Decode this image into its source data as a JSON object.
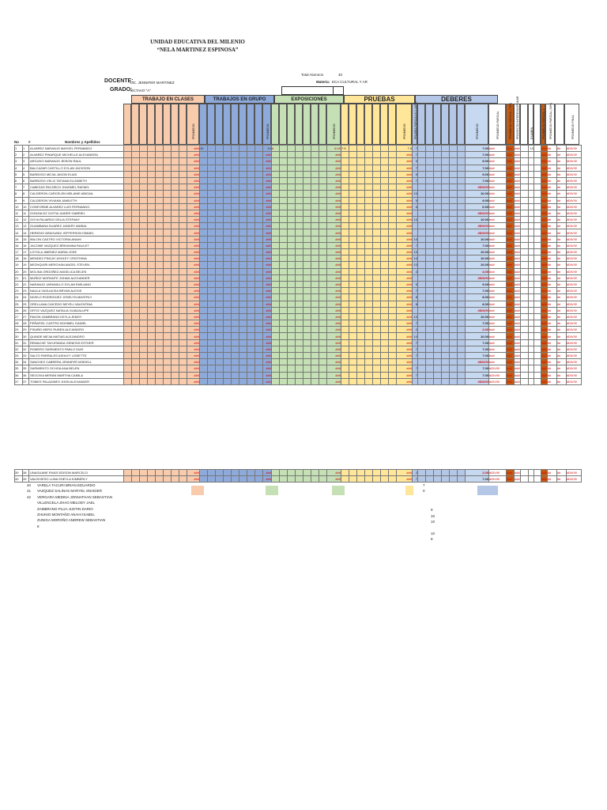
{
  "school": {
    "line1": "UNIDAD EDUCATIVA DEL MILENIO",
    "line2": "“NELA MARTINEZ ESPINOSA”"
  },
  "meta": {
    "total_label": "Total Alumnos",
    "total_value": "40",
    "docente_label": "DOCENTE:",
    "docente_value": "LIC. JENNIFER MARTINEZ",
    "materia_label": "Materia:",
    "materia_value": "ECA CULTURAL Y AR",
    "grado_label": "GRADO:",
    "grado_value": "OCTAVO \"A\""
  },
  "sections": [
    "TRABAJO EN CLASES",
    "TRABAJOS EN GRUPO",
    "EXPOSICIONES",
    "PRUEBAS",
    "DEBERES"
  ],
  "col_labels": {
    "no": "No",
    "num": "#",
    "names": "Nombres y Apellidos",
    "promedio": "PROMEDIO",
    "pruebas_sub": "PRUEBA PARCIAL B.1 (40%)",
    "parcial_1": "PROMEDIO PARCIAL",
    "parcial_2": "PROMEDIO PARCIAL (70%)",
    "proyecto": "PROYECTO INTERDISCIPLINAR",
    "examen": "EXAMEN",
    "parcial_3": "PROMEDIO PARCIAL 2",
    "parcial_4": "PROMEDIO PARCIAL (30%)",
    "final": "PROMEDIO FINAL"
  },
  "students": [
    {
      "no": "1",
      "num": "1",
      "name": "ALVAREZ NARANJO MAYKEL FERNANDO",
      "tg": "10",
      "tgp": "10",
      "ex": "6",
      "exp": "6.00",
      "pr": "7.5",
      "prp": "7.5",
      "de": "7",
      "dep": "7.00",
      "p1": "###",
      "p2": "10",
      "fin": "#DIV/0!"
    },
    {
      "no": "2",
      "num": "2",
      "name": "ALVAREZ PINARQUE MICHELLE ALEXANDRA",
      "de": "7",
      "dep": "7.00",
      "fin": "#DIV/0!"
    },
    {
      "no": "3",
      "num": "3",
      "name": "ARGUDO NARANJO JEISON RAUL",
      "de": "9",
      "dep": "9.00",
      "fin": "#DIV/0!"
    },
    {
      "no": "4",
      "num": "4",
      "name": "BALCAZAR CASTILLO DYLAN JACKSON",
      "de": "7",
      "dep": "7.00",
      "fin": "#DIV/0!"
    },
    {
      "no": "5",
      "num": "5",
      "name": "BARBOSO MEJIA JASON ELIAS",
      "de": "9",
      "dep": "9.00",
      "fin": "#DIV/0!"
    },
    {
      "no": "6",
      "num": "6",
      "name": "BARBOSO VELIZ TATIANA ELIZABETH",
      "de": "7",
      "dep": "7.00",
      "fin": "#DIV/0!"
    },
    {
      "no": "7",
      "num": "7",
      "name": "CABEZAS PACHECO JHASMEL RAFAEL",
      "dep": "#DIV/0!",
      "fin": "#DIV/0!"
    },
    {
      "no": "8",
      "num": "8",
      "name": "CALDERON CARCELEN MELANIE ABIGAIL",
      "de": "10",
      "dep": "10.00",
      "fin": "#DIV/0!"
    },
    {
      "no": "9",
      "num": "9",
      "name": "CALDERON VIVIANA JAMILETH",
      "de": "9",
      "dep": "9.00",
      "fin": "#DIV/0!"
    },
    {
      "no": "10",
      "num": "10",
      "name": "CONFORME ALVAREZ LUIS FERNANDO",
      "de": "6",
      "dep": "6.00",
      "fin": "#DIV/0!"
    },
    {
      "no": "11",
      "num": "11",
      "name": "GONZALEZ GOITIA JAIDER GABRIEL",
      "dep": "#DIV/0!",
      "fin": "#DIV/0!"
    },
    {
      "no": "12",
      "num": "12",
      "name": "GOYA RAJARDO DELIA STEFANY",
      "de": "10",
      "dep": "10.00",
      "fin": "#DIV/0!"
    },
    {
      "no": "13",
      "num": "13",
      "name": "GUAMBANA SUAREZ JANDRY ANIBAL",
      "dep": "#DIV/0!",
      "fin": "#DIV/0!"
    },
    {
      "no": "14",
      "num": "14",
      "name": "HEREDIO ARAGUNDI JEFFERSON ISMAEL",
      "dep": "#DIV/0!",
      "fin": "#DIV/0!"
    },
    {
      "no": "15",
      "num": "15",
      "name": "IBILCIN CASTRO VICTORIA ANAHI",
      "de": "10",
      "dep": "10.00",
      "fin": "#DIV/0!"
    },
    {
      "no": "16",
      "num": "16",
      "name": "JACOME VAZQUEZ BRIHANNA RAULET",
      "de": "7",
      "dep": "7.00",
      "fin": "#DIV/0!"
    },
    {
      "no": "17",
      "num": "17",
      "name": "LOYOLA JIMENEZ MARIA JOSE",
      "de": "10",
      "dep": "10.00",
      "fin": "#DIV/0!"
    },
    {
      "no": "18",
      "num": "18",
      "name": "MENDEZ PINCAY ASHLEY CRISTHINA",
      "de": "10",
      "dep": "10.00",
      "fin": "#DIV/0!"
    },
    {
      "no": "19",
      "num": "19",
      "name": "MEZHQUIRI MERCHAN ANGEL STEVEN",
      "de": "10",
      "dep": "10.00",
      "fin": "#DIV/0!"
    },
    {
      "no": "20",
      "num": "20",
      "name": "MOLINA ORDOÑEZ ANGELICA BELEN",
      "de": "4",
      "dep": "4.00",
      "red": true,
      "fin": "#DIV/0!"
    },
    {
      "no": "21",
      "num": "21",
      "name": "MUÑOZ MORANTE JOHAN ALEXANDER",
      "dep": "#DIV/0!",
      "fin": "#DIV/0!"
    },
    {
      "no": "22",
      "num": "22",
      "name": "NARANJO JARAMILLO DYLAN EMILIANO",
      "de": "9",
      "dep": "9.00",
      "fin": "#DIV/0!"
    },
    {
      "no": "23",
      "num": "23",
      "name": "NAULA YAGUACEA BRYAN ALEXIS",
      "de": "7",
      "dep": "7.00",
      "fin": "#DIV/0!"
    },
    {
      "no": "24",
      "num": "24",
      "name": "NIVELO RODRIGUEZ JOSELYN MAYERLY",
      "de": "8",
      "dep": "8.00",
      "fin": "#DIV/0!"
    },
    {
      "no": "25",
      "num": "25",
      "name": "ORELLANA CAICEDO NEYELI VALENTINA",
      "de": "8",
      "dep": "8.00",
      "fin": "#DIV/0!"
    },
    {
      "no": "26",
      "num": "26",
      "name": "ORTIZ VAZQUEZ NATALIA GUADALUPE",
      "dep": "#DIV/0!",
      "fin": "#DIV/0!"
    },
    {
      "no": "27",
      "num": "27",
      "name": "PAVON ZAMBRANO KEYLA JEMSY",
      "de": "10",
      "dep": "10.00",
      "fin": "#DIV/0!"
    },
    {
      "no": "28",
      "num": "28",
      "name": "PEÑAFIEL CASTRO BOHIMEL DANIEL",
      "de": "7",
      "dep": "7.00",
      "fin": "#DIV/0!"
    },
    {
      "no": "29",
      "num": "29",
      "name": "PISAÑO MERO RUBEN ALEJANDRO",
      "de": "2",
      "dep": "2.00",
      "red": true,
      "fin": "#DIV/0!"
    },
    {
      "no": "30",
      "num": "30",
      "name": "QUINDE MEJIA MATIAS ALEJANDRO",
      "de": "10",
      "dep": "10.00",
      "fin": "#DIV/0!"
    },
    {
      "no": "31",
      "num": "31",
      "name": "REMACHE TAYUPANDA GENESIS ESTHER",
      "de": "7",
      "dep": "7.00",
      "fin": "#DIV/0!"
    },
    {
      "no": "32",
      "num": "32",
      "name": "ROMERO SARMIENTO PABLO DIAS",
      "de": "7",
      "dep": "7.00",
      "fin": "#DIV/0!"
    },
    {
      "no": "33",
      "num": "33",
      "name": "SALTO PARRALES ASHLEY LISSETTE",
      "de": "7",
      "dep": "7.00",
      "fin": "#DIV/0!"
    },
    {
      "no": "34",
      "num": "34",
      "name": "SANCHEZ CABRERA JENNIFER MISHELL",
      "dep": "#DIV/0!",
      "fin": "#DIV/0!"
    },
    {
      "no": "35",
      "num": "35",
      "name": "SARMIENTO OCHOA ANA BELEN",
      "de": "7",
      "dep": "7.00",
      "p1": "#DIV/0!",
      "fin": "#DIV/0!"
    },
    {
      "no": "36",
      "num": "36",
      "name": "SEGOVIA MERAN MARTHA CAMILA",
      "de": "7",
      "dep": "7.00",
      "p1": "#DIV/0!",
      "fin": "#DIV/0!"
    },
    {
      "no": "37",
      "num": "37",
      "name": "TOBIES PALADINES JHON ALEXANDER",
      "dep": "#DIV/0!",
      "p1": "#DIV/0!",
      "fin": "#DIV/0!"
    }
  ],
  "students_lower": [
    {
      "no": "39",
      "num": "38",
      "name": "UNAGUANE RIVAS EDISON MARCELO",
      "de": "2",
      "dep": "2.00",
      "red": true,
      "p1": "#DIV/0!",
      "fin": "#DIV/0!"
    },
    {
      "no": "40",
      "num": "39",
      "name": "VALDIVIESO LUNA SHEYLA KIMBERLY",
      "de": "7",
      "dep": "7.00",
      "p1": "#DIV/0!",
      "fin": "#DIV/0!"
    }
  ],
  "extra_list": [
    {
      "num": "40",
      "name": "VARELA TACURI BRIAN EDUARDO",
      "val": "7"
    },
    {
      "num": "41",
      "name": "VAZQUEZ SALINAS MARYEL SNAIDER",
      "val": "0"
    },
    {
      "num": "42",
      "name": "VERGARA MEDINA JONNATHAN SEBASTIAN",
      "val": ""
    },
    {
      "num": "",
      "name": "VILLENCELA ZHAO MELODY JAEL",
      "val": "9"
    },
    {
      "num": "",
      "name": "ZAMBRANO PLUA JUSTIN DARIO",
      "val": "10"
    },
    {
      "num": "",
      "name": "ZHUNIO MONTAÑO ANAHI ISABEL",
      "val": "10"
    },
    {
      "num": "",
      "name": "ZUNIGA MOROÑO ANDREW SEBASTIAN",
      "val": ""
    },
    {
      "num": "",
      "name": "8",
      "val": "10"
    },
    {
      "num": "",
      "name": "",
      "val": "9"
    }
  ],
  "placeholders": {
    "hash": "###",
    "hash_short": "##",
    "div": "#DIV/0!"
  },
  "colors": {
    "clases": "#f8cbad",
    "grupo": "#8eaadb",
    "expos": "#c5e0b4",
    "pruebas": "#ffe699",
    "deberes": "#b4c7e7",
    "orange": "#c55a11",
    "green": "#70ad47",
    "promblue": "#c6d9f1"
  }
}
